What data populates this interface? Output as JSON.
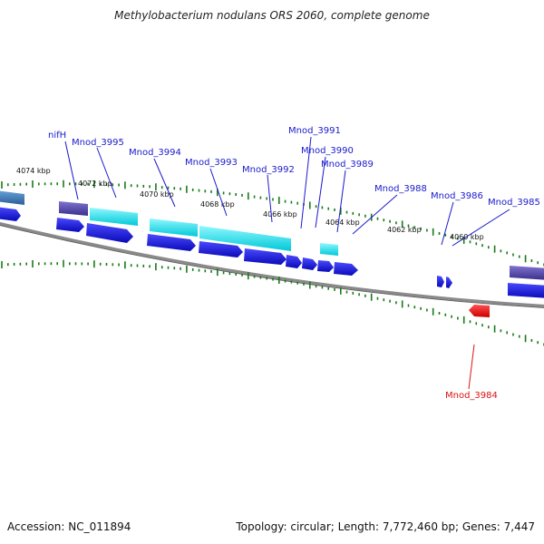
{
  "header": {
    "title": "Methylobacterium nodulans ORS 2060, complete genome"
  },
  "footer": {
    "accession": "Accession: NC_011894",
    "topology": "Topology: circular; Length: 7,772,460 bp; Genes: 7,447"
  },
  "colors": {
    "backbone": "#888888",
    "tick": "#1a7a1a",
    "cds": "#1a1ae0",
    "cds_light": "#00e5ee",
    "cds_purple": "#5b4fb0",
    "cds_steel": "#3b7ab8",
    "label_forward": "#1a1acc",
    "label_reverse": "#dd1111",
    "reverse_gene": "#ff1010"
  },
  "scale_labels": [
    "4074 kbp",
    "4072 kbp",
    "4070 kbp",
    "4068 kbp",
    "4066 kbp",
    "4064 kbp",
    "4062 kbp",
    "4060 kbp"
  ],
  "gene_labels": [
    {
      "text": "nifH",
      "strand": "forward"
    },
    {
      "text": "Mnod_3995",
      "strand": "forward"
    },
    {
      "text": "Mnod_3994",
      "strand": "forward"
    },
    {
      "text": "Mnod_3993",
      "strand": "forward"
    },
    {
      "text": "Mnod_3992",
      "strand": "forward"
    },
    {
      "text": "Mnod_3991",
      "strand": "forward"
    },
    {
      "text": "Mnod_3990",
      "strand": "forward"
    },
    {
      "text": "Mnod_3989",
      "strand": "forward"
    },
    {
      "text": "Mnod_3988",
      "strand": "forward"
    },
    {
      "text": "Mnod_3986",
      "strand": "forward"
    },
    {
      "text": "Mnod_3985",
      "strand": "forward"
    },
    {
      "text": "Mnod_3984",
      "strand": "reverse"
    }
  ]
}
